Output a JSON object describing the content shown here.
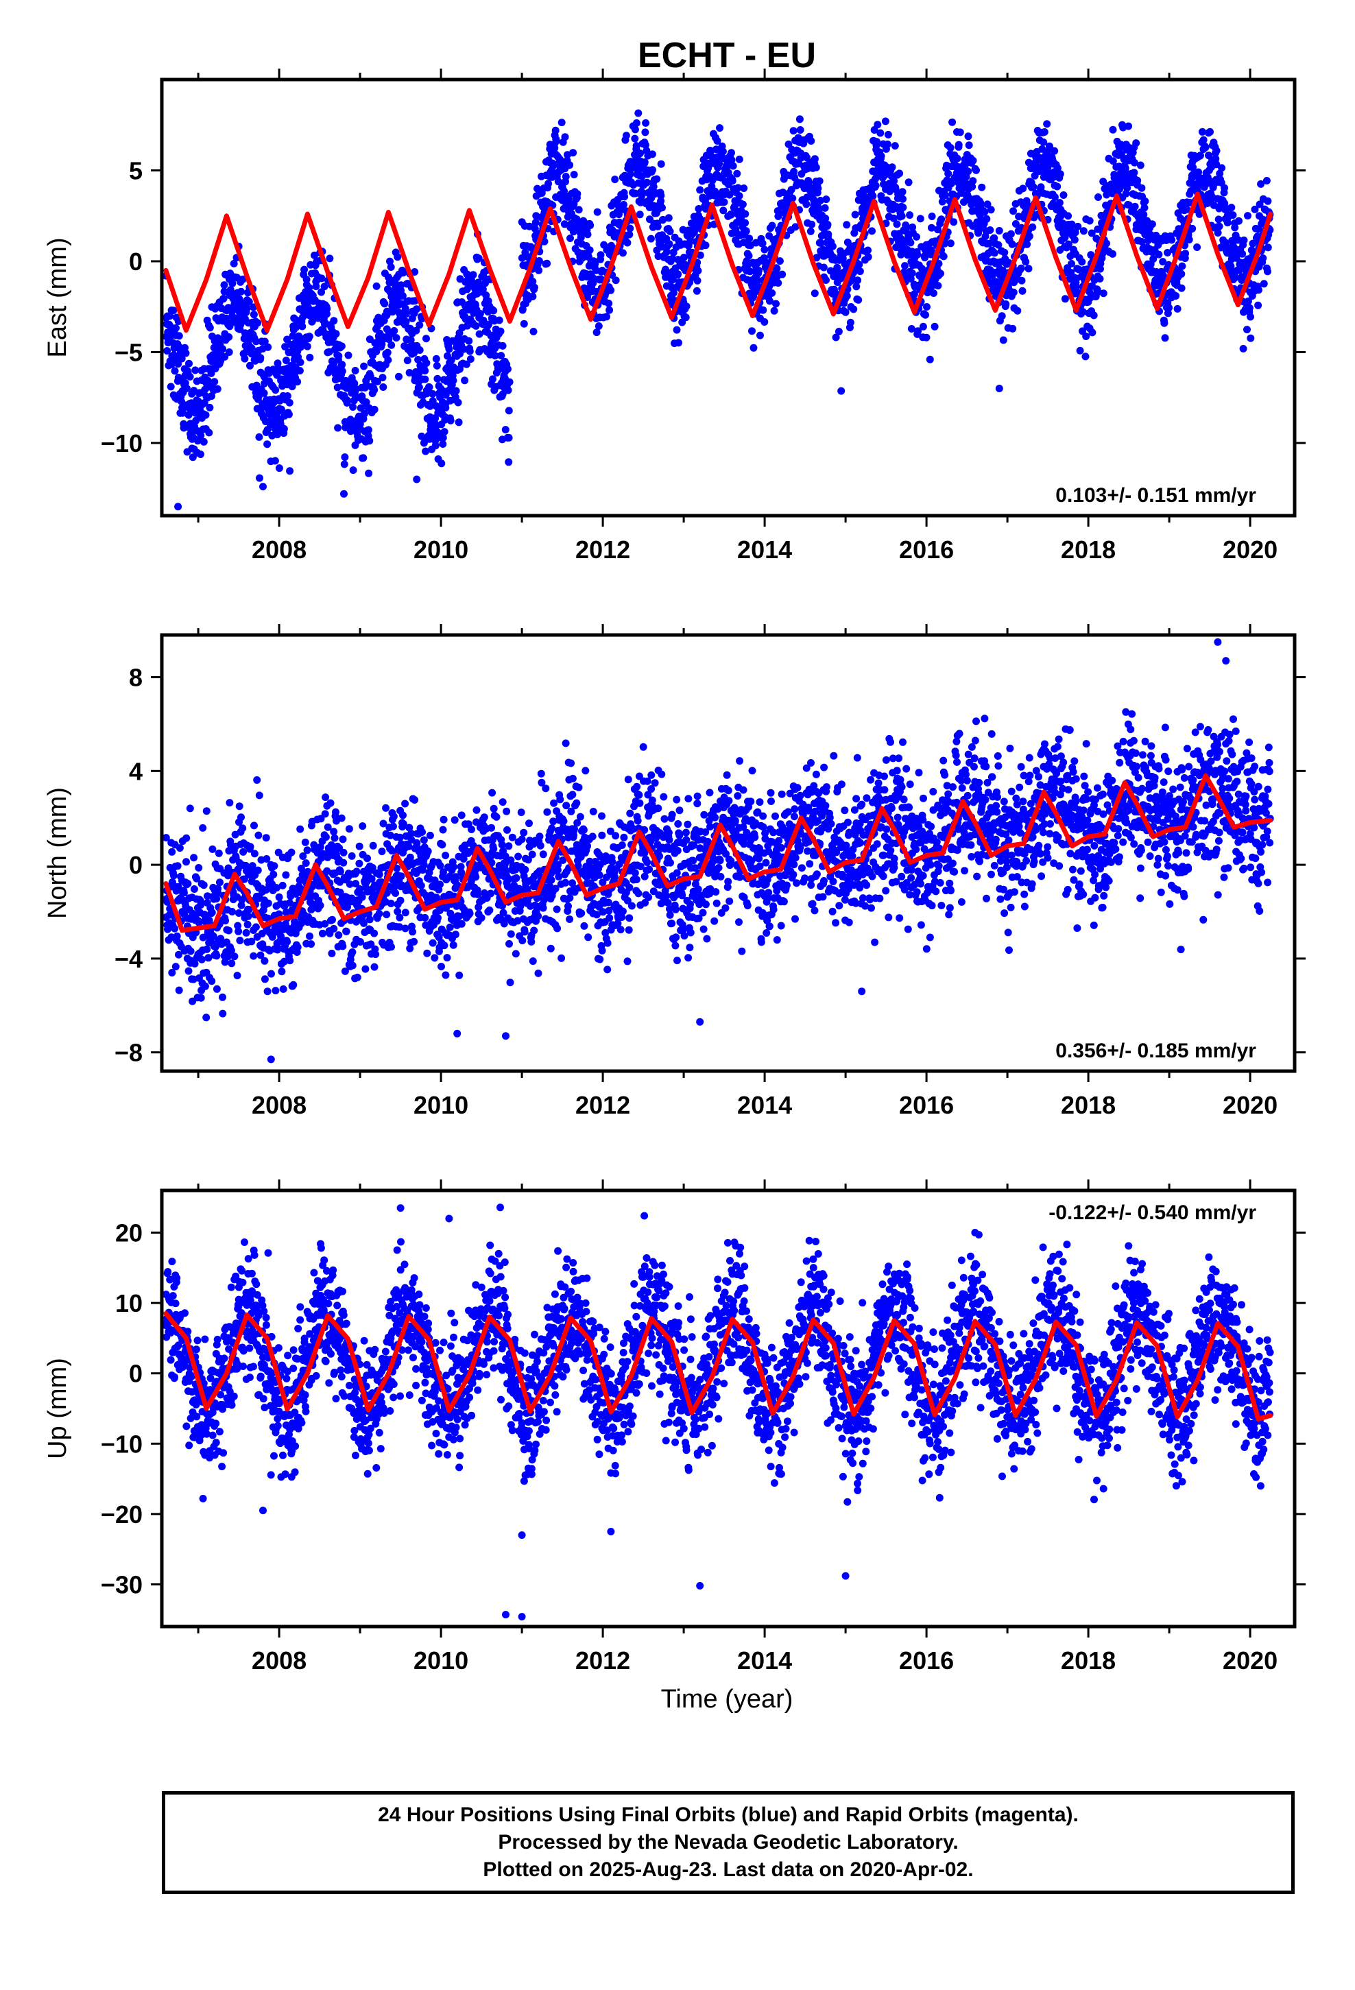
{
  "title": "ECHT - EU",
  "x_axis_label": "Time (year)",
  "footer": {
    "line1": "24 Hour Positions Using Final Orbits (blue) and Rapid Orbits (magenta).",
    "line2": "Processed by the Nevada Geodetic Laboratory.",
    "line3": "Plotted on 2025-Aug-23. Last data on 2020-Apr-02."
  },
  "colors": {
    "observations": "#0000ff",
    "model": "#ff0000",
    "frame": "#000000"
  },
  "chart_data": [
    {
      "type": "scatter",
      "ylabel": "East (mm)",
      "rate_text": "0.103+/- 0.151 mm/yr",
      "rate_position": "bottom-right",
      "xlim": [
        2006.55,
        2020.55
      ],
      "ylim": [
        -14,
        10
      ],
      "x_ticks": [
        2008,
        2010,
        2012,
        2014,
        2016,
        2018,
        2020
      ],
      "y_ticks": [
        5,
        0,
        -5,
        -10
      ],
      "grid": false,
      "data_range": [
        2006.6,
        2020.25
      ],
      "series": [
        {
          "role": "observations",
          "color": "#0000ff",
          "segments": [
            {
              "x_start": 2006.6,
              "x_end": 2010.85,
              "mean": -5.2,
              "amplitude": 3.2,
              "peak_phase": 0.45,
              "scatter": 1.4
            },
            {
              "x_start": 2011.0,
              "x_end": 2020.25,
              "mean": 1.8,
              "amplitude": 3.2,
              "peak_phase": 0.45,
              "scatter": 1.4
            }
          ],
          "outliers": [
            [
              2006.75,
              -13.5
            ],
            [
              2007.8,
              -12.4
            ],
            [
              2008.8,
              -12.8
            ],
            [
              2009.7,
              -12.0
            ],
            [
              2016.9,
              -7.0
            ]
          ]
        },
        {
          "role": "model",
          "color": "#ff0000",
          "x": [
            2006.6,
            2006.85,
            2007.1,
            2007.35,
            2007.6,
            2007.85,
            2008.1,
            2008.35,
            2008.6,
            2008.85,
            2009.1,
            2009.35,
            2009.6,
            2009.85,
            2010.1,
            2010.35,
            2010.6,
            2010.85,
            2011.1,
            2011.35,
            2011.6,
            2011.85,
            2012.1,
            2012.35,
            2012.6,
            2012.85,
            2013.1,
            2013.35,
            2013.6,
            2013.85,
            2014.1,
            2014.35,
            2014.6,
            2014.85,
            2015.1,
            2015.35,
            2015.6,
            2015.85,
            2016.1,
            2016.35,
            2016.6,
            2016.85,
            2017.1,
            2017.35,
            2017.6,
            2017.85,
            2018.1,
            2018.35,
            2018.6,
            2018.85,
            2019.1,
            2019.35,
            2019.6,
            2019.85,
            2020.1,
            2020.25
          ],
          "values": [
            -0.5,
            -3.8,
            -1.0,
            2.5,
            -0.8,
            -3.8,
            -1.0,
            2.6,
            -0.6,
            -3.6,
            -0.9,
            2.7,
            -0.5,
            -3.5,
            -0.7,
            2.8,
            -0.4,
            -3.3,
            -0.4,
            2.9,
            -0.3,
            -3.2,
            -0.3,
            3.0,
            -0.3,
            -3.1,
            -0.2,
            3.1,
            -0.2,
            -3.0,
            -0.1,
            3.2,
            -0.1,
            -2.9,
            0.0,
            3.3,
            0.0,
            -2.8,
            0.1,
            3.4,
            0.1,
            -2.7,
            0.2,
            3.5,
            0.2,
            -2.7,
            0.3,
            3.6,
            0.3,
            -2.6,
            0.4,
            3.7,
            0.4,
            -2.4,
            0.5,
            2.6
          ]
        }
      ]
    },
    {
      "type": "scatter",
      "ylabel": "North (mm)",
      "rate_text": "0.356+/- 0.185 mm/yr",
      "rate_position": "bottom-right",
      "xlim": [
        2006.55,
        2020.55
      ],
      "ylim": [
        -8.8,
        9.8
      ],
      "x_ticks": [
        2008,
        2010,
        2012,
        2014,
        2016,
        2018,
        2020
      ],
      "y_ticks": [
        8,
        4,
        0,
        -4,
        -8
      ],
      "grid": false,
      "data_range": [
        2006.6,
        2020.25
      ],
      "series": [
        {
          "role": "observations",
          "color": "#0000ff",
          "segments": [
            {
              "x_start": 2006.6,
              "x_end": 2020.25,
              "mean_start": -2.0,
              "mean_end": 2.8,
              "amplitude": 1.0,
              "peak_phase": 0.55,
              "scatter": 1.5
            }
          ],
          "outliers": [
            [
              2007.9,
              -8.3
            ],
            [
              2010.2,
              -7.2
            ],
            [
              2010.8,
              -7.3
            ],
            [
              2013.2,
              -6.7
            ],
            [
              2015.2,
              -5.4
            ],
            [
              2019.6,
              9.5
            ],
            [
              2019.7,
              8.7
            ]
          ]
        },
        {
          "role": "model",
          "color": "#ff0000",
          "x": [
            2006.6,
            2006.8,
            2007.0,
            2007.2,
            2007.45,
            2007.6,
            2007.8,
            2008.0,
            2008.2,
            2008.45,
            2008.6,
            2008.8,
            2009.0,
            2009.2,
            2009.45,
            2009.6,
            2009.8,
            2010.0,
            2010.2,
            2010.45,
            2010.6,
            2010.8,
            2011.0,
            2011.2,
            2011.45,
            2011.6,
            2011.8,
            2012.0,
            2012.2,
            2012.45,
            2012.6,
            2012.8,
            2013.0,
            2013.2,
            2013.45,
            2013.6,
            2013.8,
            2014.0,
            2014.2,
            2014.45,
            2014.6,
            2014.8,
            2015.0,
            2015.2,
            2015.45,
            2015.6,
            2015.8,
            2016.0,
            2016.2,
            2016.45,
            2016.6,
            2016.8,
            2017.0,
            2017.2,
            2017.45,
            2017.6,
            2017.8,
            2018.0,
            2018.2,
            2018.45,
            2018.6,
            2018.8,
            2019.0,
            2019.2,
            2019.45,
            2019.6,
            2019.8,
            2020.0,
            2020.25
          ],
          "values": [
            -0.8,
            -2.8,
            -2.7,
            -2.6,
            -0.4,
            -1.2,
            -2.6,
            -2.3,
            -2.2,
            0.0,
            -0.9,
            -2.3,
            -2.0,
            -1.8,
            0.4,
            -0.5,
            -1.9,
            -1.6,
            -1.5,
            0.7,
            -0.2,
            -1.6,
            -1.3,
            -1.2,
            1.0,
            0.1,
            -1.3,
            -1.0,
            -0.8,
            1.4,
            0.5,
            -0.9,
            -0.6,
            -0.5,
            1.7,
            0.8,
            -0.6,
            -0.3,
            -0.2,
            2.0,
            1.1,
            -0.3,
            0.1,
            0.2,
            2.4,
            1.5,
            0.1,
            0.4,
            0.5,
            2.7,
            1.8,
            0.4,
            0.8,
            0.9,
            3.1,
            2.2,
            0.8,
            1.2,
            1.3,
            3.5,
            2.6,
            1.2,
            1.5,
            1.6,
            3.8,
            2.9,
            1.6,
            1.8,
            1.9
          ]
        }
      ]
    },
    {
      "type": "scatter",
      "ylabel": "Up (mm)",
      "rate_text": "-0.122+/- 0.540 mm/yr",
      "rate_position": "top-right",
      "xlim": [
        2006.55,
        2020.55
      ],
      "ylim": [
        -36,
        26
      ],
      "x_ticks": [
        2008,
        2010,
        2012,
        2014,
        2016,
        2018,
        2020
      ],
      "x_tick_labels": [
        "2008",
        "2010",
        "2012",
        "2014",
        "2016",
        "2018",
        "2020"
      ],
      "y_ticks": [
        20,
        10,
        0,
        -10,
        -20,
        -30
      ],
      "grid": false,
      "data_range": [
        2006.6,
        2020.25
      ],
      "series": [
        {
          "role": "observations",
          "color": "#0000ff",
          "segments": [
            {
              "x_start": 2006.6,
              "x_end": 2020.25,
              "mean": 1.5,
              "amplitude": 7.0,
              "peak_phase": 0.6,
              "scatter": 4.5
            }
          ],
          "outliers": [
            [
              2009.5,
              23.5
            ],
            [
              2010.1,
              22.0
            ],
            [
              2007.8,
              -19.5
            ],
            [
              2011.0,
              -23.0
            ],
            [
              2012.1,
              -22.5
            ],
            [
              2013.2,
              -30.2
            ],
            [
              2015.0,
              -28.8
            ],
            [
              2010.8,
              -34.3
            ],
            [
              2011.0,
              -34.6
            ],
            [
              2016.6,
              20.0
            ]
          ]
        },
        {
          "role": "model",
          "color": "#ff0000",
          "x": [
            2006.6,
            2006.85,
            2007.1,
            2007.35,
            2007.6,
            2007.85,
            2008.1,
            2008.35,
            2008.6,
            2008.85,
            2009.1,
            2009.35,
            2009.6,
            2009.85,
            2010.1,
            2010.35,
            2010.6,
            2010.85,
            2011.1,
            2011.35,
            2011.6,
            2011.85,
            2012.1,
            2012.35,
            2012.6,
            2012.85,
            2013.1,
            2013.35,
            2013.6,
            2013.85,
            2014.1,
            2014.35,
            2014.6,
            2014.85,
            2015.1,
            2015.35,
            2015.6,
            2015.85,
            2016.1,
            2016.35,
            2016.6,
            2016.85,
            2017.1,
            2017.35,
            2017.6,
            2017.85,
            2018.1,
            2018.35,
            2018.6,
            2018.85,
            2019.1,
            2019.35,
            2019.6,
            2019.85,
            2020.1,
            2020.25
          ],
          "values": [
            8.5,
            5.0,
            -5.0,
            0.0,
            8.3,
            5.0,
            -5.1,
            0.0,
            8.2,
            4.9,
            -5.2,
            -0.1,
            8.1,
            4.8,
            -5.3,
            -0.2,
            8.0,
            4.7,
            -5.4,
            -0.3,
            7.9,
            4.6,
            -5.5,
            -0.4,
            7.8,
            4.5,
            -5.6,
            -0.5,
            7.7,
            4.4,
            -5.7,
            -0.5,
            7.6,
            4.3,
            -5.8,
            -0.6,
            7.5,
            4.2,
            -5.9,
            -0.7,
            7.4,
            4.1,
            -6.0,
            -0.8,
            7.3,
            4.0,
            -6.1,
            -0.9,
            7.2,
            3.9,
            -6.2,
            -1.0,
            7.1,
            3.8,
            -6.5,
            -6.0
          ]
        }
      ]
    }
  ]
}
